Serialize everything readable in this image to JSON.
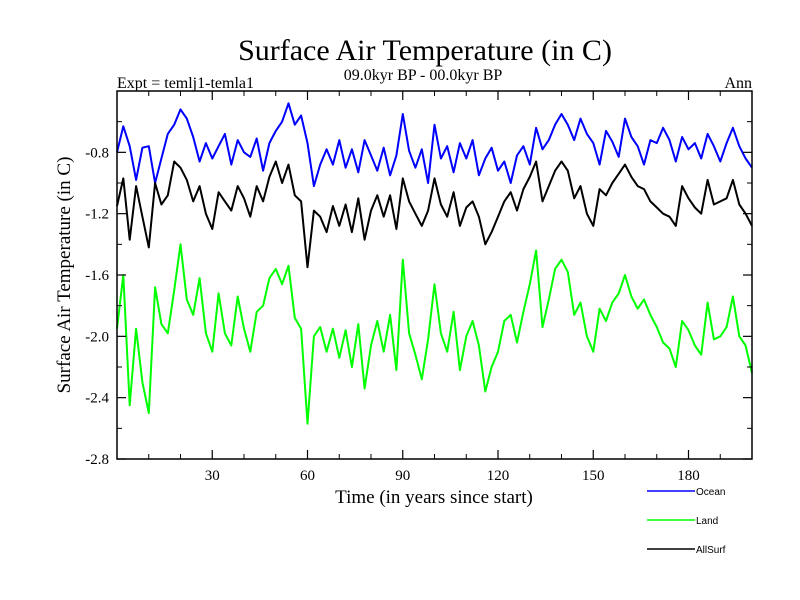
{
  "chart_data": {
    "type": "line",
    "title": "Surface Air Temperature (in C)",
    "subtitle": "09.0kyr BP - 00.0kyr BP",
    "left_label": "Expt = temlj1-temla1",
    "right_label": "Ann",
    "xlabel": "Time (in years since start)",
    "ylabel": "Surface Air Temperature (in C)",
    "xlim": [
      0,
      200
    ],
    "ylim": [
      -2.8,
      -0.4
    ],
    "xticks": [
      30,
      60,
      90,
      120,
      150,
      180
    ],
    "xtick_labels": [
      "30",
      "60",
      "90",
      "120",
      "150",
      "180"
    ],
    "yticks": [
      -2.8,
      -2.4,
      -2.0,
      -1.6,
      -1.2,
      -0.8
    ],
    "ytick_labels": [
      "-2.8",
      "-2.4",
      "-2.0",
      "-1.6",
      "-1.2",
      "-0.8"
    ],
    "legend_position": "bottom-right, below plot",
    "series": [
      {
        "name": "Ocean",
        "color": "#0000ff",
        "x": [
          0,
          2,
          4,
          6,
          8,
          10,
          12,
          14,
          16,
          18,
          20,
          22,
          24,
          26,
          28,
          30,
          32,
          34,
          36,
          38,
          40,
          42,
          44,
          46,
          48,
          50,
          52,
          54,
          56,
          58,
          60,
          62,
          64,
          66,
          68,
          70,
          72,
          74,
          76,
          78,
          80,
          82,
          84,
          86,
          88,
          90,
          92,
          94,
          96,
          98,
          100,
          102,
          104,
          106,
          108,
          110,
          112,
          114,
          116,
          118,
          120,
          122,
          124,
          126,
          128,
          130,
          132,
          134,
          136,
          138,
          140,
          142,
          144,
          146,
          148,
          150,
          152,
          154,
          156,
          158,
          160,
          162,
          164,
          166,
          168,
          170,
          172,
          174,
          176,
          178,
          180,
          182,
          184,
          186,
          188,
          190,
          192,
          194,
          196,
          198,
          200
        ],
        "values": [
          -0.8,
          -0.63,
          -0.76,
          -0.98,
          -0.77,
          -0.76,
          -1.0,
          -0.84,
          -0.68,
          -0.62,
          -0.52,
          -0.58,
          -0.7,
          -0.86,
          -0.74,
          -0.84,
          -0.76,
          -0.68,
          -0.88,
          -0.72,
          -0.8,
          -0.83,
          -0.71,
          -0.92,
          -0.74,
          -0.66,
          -0.6,
          -0.48,
          -0.62,
          -0.56,
          -0.74,
          -1.02,
          -0.88,
          -0.78,
          -0.88,
          -0.72,
          -0.9,
          -0.78,
          -0.93,
          -0.72,
          -0.82,
          -0.92,
          -0.77,
          -0.95,
          -0.82,
          -0.55,
          -0.79,
          -0.9,
          -0.78,
          -1.0,
          -0.62,
          -0.84,
          -0.76,
          -0.93,
          -0.74,
          -0.84,
          -0.72,
          -0.95,
          -0.84,
          -0.77,
          -0.92,
          -0.86,
          -1.0,
          -0.82,
          -0.76,
          -0.88,
          -0.64,
          -0.78,
          -0.72,
          -0.62,
          -0.55,
          -0.62,
          -0.72,
          -0.58,
          -0.68,
          -0.74,
          -0.88,
          -0.66,
          -0.73,
          -0.83,
          -0.58,
          -0.7,
          -0.76,
          -0.88,
          -0.72,
          -0.74,
          -0.64,
          -0.72,
          -0.86,
          -0.7,
          -0.78,
          -0.74,
          -0.84,
          -0.68,
          -0.76,
          -0.86,
          -0.74,
          -0.64,
          -0.76,
          -0.84,
          -0.9
        ]
      },
      {
        "name": "Land",
        "color": "#00ff00",
        "x": [
          0,
          2,
          4,
          6,
          8,
          10,
          12,
          14,
          16,
          18,
          20,
          22,
          24,
          26,
          28,
          30,
          32,
          34,
          36,
          38,
          40,
          42,
          44,
          46,
          48,
          50,
          52,
          54,
          56,
          58,
          60,
          62,
          64,
          66,
          68,
          70,
          72,
          74,
          76,
          78,
          80,
          82,
          84,
          86,
          88,
          90,
          92,
          94,
          96,
          98,
          100,
          102,
          104,
          106,
          108,
          110,
          112,
          114,
          116,
          118,
          120,
          122,
          124,
          126,
          128,
          130,
          132,
          134,
          136,
          138,
          140,
          142,
          144,
          146,
          148,
          150,
          152,
          154,
          156,
          158,
          160,
          162,
          164,
          166,
          168,
          170,
          172,
          174,
          176,
          178,
          180,
          182,
          184,
          186,
          188,
          190,
          192,
          194,
          196,
          198,
          200
        ],
        "values": [
          -1.95,
          -1.6,
          -2.45,
          -1.95,
          -2.3,
          -2.5,
          -1.68,
          -1.92,
          -1.98,
          -1.7,
          -1.4,
          -1.76,
          -1.86,
          -1.62,
          -1.98,
          -2.1,
          -1.72,
          -1.98,
          -2.06,
          -1.74,
          -1.95,
          -2.1,
          -1.84,
          -1.8,
          -1.62,
          -1.56,
          -1.66,
          -1.54,
          -1.88,
          -1.95,
          -2.57,
          -2.0,
          -1.94,
          -2.1,
          -1.95,
          -2.14,
          -1.96,
          -2.2,
          -1.92,
          -2.34,
          -2.06,
          -1.9,
          -2.1,
          -1.86,
          -2.22,
          -1.5,
          -1.98,
          -2.12,
          -2.28,
          -2.02,
          -1.66,
          -1.98,
          -2.1,
          -1.84,
          -2.22,
          -2.0,
          -1.9,
          -2.06,
          -2.36,
          -2.2,
          -2.1,
          -1.9,
          -1.86,
          -2.04,
          -1.84,
          -1.66,
          -1.44,
          -1.94,
          -1.76,
          -1.56,
          -1.5,
          -1.58,
          -1.86,
          -1.78,
          -2.0,
          -2.1,
          -1.82,
          -1.9,
          -1.78,
          -1.72,
          -1.6,
          -1.74,
          -1.82,
          -1.76,
          -1.86,
          -1.94,
          -2.04,
          -2.08,
          -2.2,
          -1.9,
          -1.96,
          -2.06,
          -2.12,
          -1.78,
          -2.02,
          -2.0,
          -1.94,
          -1.74,
          -2.0,
          -2.06,
          -2.24
        ]
      },
      {
        "name": "AllSurf",
        "color": "#000000",
        "x": [
          0,
          2,
          4,
          6,
          8,
          10,
          12,
          14,
          16,
          18,
          20,
          22,
          24,
          26,
          28,
          30,
          32,
          34,
          36,
          38,
          40,
          42,
          44,
          46,
          48,
          50,
          52,
          54,
          56,
          58,
          60,
          62,
          64,
          66,
          68,
          70,
          72,
          74,
          76,
          78,
          80,
          82,
          84,
          86,
          88,
          90,
          92,
          94,
          96,
          98,
          100,
          102,
          104,
          106,
          108,
          110,
          112,
          114,
          116,
          118,
          120,
          122,
          124,
          126,
          128,
          130,
          132,
          134,
          136,
          138,
          140,
          142,
          144,
          146,
          148,
          150,
          152,
          154,
          156,
          158,
          160,
          162,
          164,
          166,
          168,
          170,
          172,
          174,
          176,
          178,
          180,
          182,
          184,
          186,
          188,
          190,
          192,
          194,
          196,
          198,
          200
        ],
        "values": [
          -1.15,
          -0.97,
          -1.37,
          -1.02,
          -1.22,
          -1.42,
          -1.0,
          -1.14,
          -1.08,
          -0.86,
          -0.9,
          -0.98,
          -1.12,
          -1.02,
          -1.2,
          -1.3,
          -1.06,
          -1.12,
          -1.18,
          -1.02,
          -1.1,
          -1.22,
          -1.02,
          -1.12,
          -0.96,
          -0.86,
          -1.0,
          -0.88,
          -1.08,
          -1.12,
          -1.55,
          -1.18,
          -1.22,
          -1.32,
          -1.15,
          -1.28,
          -1.14,
          -1.32,
          -1.1,
          -1.37,
          -1.18,
          -1.08,
          -1.22,
          -1.08,
          -1.3,
          -0.97,
          -1.12,
          -1.2,
          -1.28,
          -1.18,
          -0.97,
          -1.14,
          -1.22,
          -1.06,
          -1.28,
          -1.16,
          -1.12,
          -1.22,
          -1.4,
          -1.32,
          -1.22,
          -1.12,
          -1.06,
          -1.18,
          -1.04,
          -0.96,
          -0.86,
          -1.12,
          -1.02,
          -0.92,
          -0.86,
          -0.92,
          -1.1,
          -1.02,
          -1.2,
          -1.28,
          -1.04,
          -1.08,
          -1.0,
          -0.94,
          -0.88,
          -0.96,
          -1.02,
          -1.04,
          -1.12,
          -1.16,
          -1.2,
          -1.22,
          -1.28,
          -1.02,
          -1.1,
          -1.16,
          -1.2,
          -0.98,
          -1.14,
          -1.12,
          -1.1,
          -0.98,
          -1.14,
          -1.2,
          -1.28
        ]
      }
    ]
  }
}
